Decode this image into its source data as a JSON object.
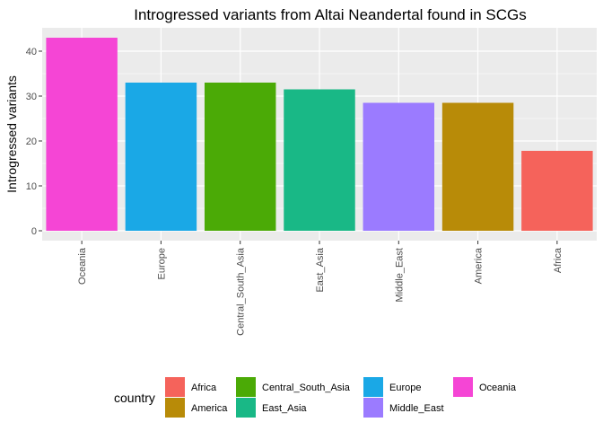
{
  "chart_data": {
    "type": "bar",
    "title": "Introgressed variants from Altai Neandertal found in SCGs",
    "xlabel": "",
    "ylabel": "Introgressed variants",
    "categories": [
      "Oceania",
      "Europe",
      "Central_South_Asia",
      "East_Asia",
      "Middle_East",
      "America",
      "Africa"
    ],
    "values": [
      43,
      33,
      33,
      31.5,
      28.5,
      28.5,
      17.8
    ],
    "bar_colors": [
      "#F545D5",
      "#1AA8E6",
      "#4BAA06",
      "#19B886",
      "#9B7BFF",
      "#B88B08",
      "#F5635B"
    ],
    "ylim": [
      -2.2,
      45.2
    ],
    "yticks": [
      0,
      10,
      20,
      30,
      40
    ],
    "grid": true,
    "panel_background": "#EBEBEB",
    "legend": {
      "title": "country",
      "position": "bottom",
      "entries": [
        {
          "label": "Africa",
          "color": "#F5635B"
        },
        {
          "label": "America",
          "color": "#B88B08"
        },
        {
          "label": "Central_South_Asia",
          "color": "#4BAA06"
        },
        {
          "label": "East_Asia",
          "color": "#19B886"
        },
        {
          "label": "Europe",
          "color": "#1AA8E6"
        },
        {
          "label": "Middle_East",
          "color": "#9B7BFF"
        },
        {
          "label": "Oceania",
          "color": "#F545D5"
        }
      ]
    }
  }
}
